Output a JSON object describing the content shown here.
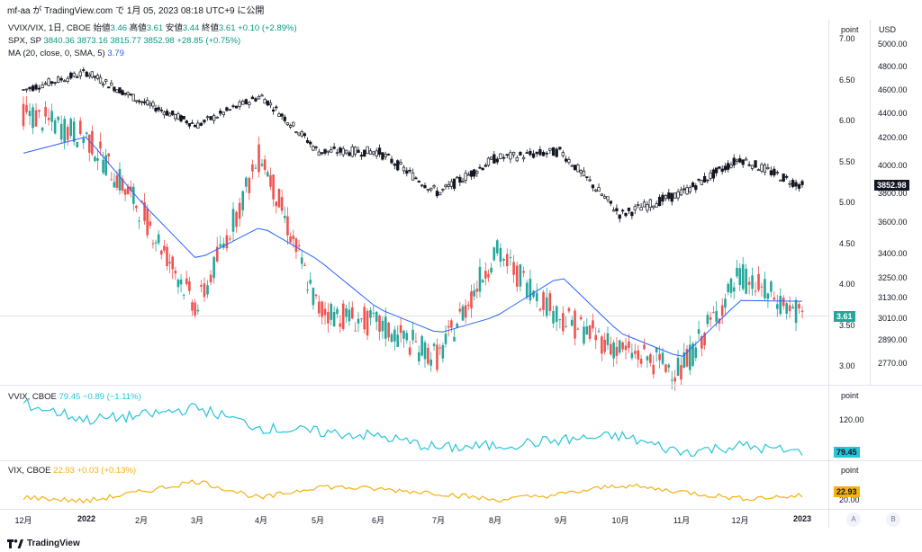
{
  "header": "mf-aa が TradingView.com で 1月 05, 2023 08:18 UTC+9 に公開",
  "legend": {
    "main_name": "VVIX/VIX, 1日, CBOE",
    "main_o_label": "始値",
    "main_o": "3.46",
    "main_h_label": "高値",
    "main_h": "3.61",
    "main_l_label": "安値",
    "main_l": "3.44",
    "main_c_label": "終値",
    "main_c": "3.61",
    "main_change": "+0.10 (+2.89%)",
    "spx_name": "SPX, SP",
    "spx_values": "3840.36  3873.16  3815.77  3852.98  +28.85 (+0.75%)",
    "ma_name": "MA (20, close, 0, SMA, 5)",
    "ma_value": "3.79",
    "vvix_name": "VVIX, CBOE",
    "vvix_values": "79.45  −0.89 (−1.11%)",
    "vix_name": "VIX, CBOE",
    "vix_values": "22.93  +0.03 (+0.13%)"
  },
  "axes": {
    "point_label": "point",
    "usd_label": "USD",
    "left_ticks": [
      "7.00",
      "6.50",
      "6.00",
      "5.50",
      "5.00",
      "4.50",
      "4.00",
      "3.50",
      "3.00"
    ],
    "right_ticks": [
      "5000.00",
      "4800.00",
      "4600.00",
      "4400.00",
      "4200.00",
      "4000.00",
      "3800.00",
      "3600.00",
      "3400.00",
      "3250.00",
      "3130.00",
      "3010.00",
      "2890.00",
      "2770.00"
    ],
    "spx_badge": "3852.98",
    "ratio_badge": "3.61",
    "vvix_tick": "120.00",
    "vvix_badge": "79.45",
    "vix_tick": "20.00",
    "vix_badge": "22.93",
    "x_labels": [
      "12月",
      "2022",
      "2月",
      "3月",
      "4月",
      "5月",
      "6月",
      "7月",
      "8月",
      "9月",
      "10月",
      "11月",
      "12月",
      "2023"
    ]
  },
  "colors": {
    "up": "#26a69a",
    "down": "#ef5350",
    "spx": "#131722",
    "ma": "#2962ff",
    "vvix": "#26c6da",
    "vix": "#f6b012"
  },
  "footer": {
    "brand": "TradingView",
    "btn_a": "A",
    "btn_b": "B"
  },
  "chart_data": {
    "type": "line",
    "x": [
      "12月",
      "2022",
      "2月",
      "3月",
      "4月",
      "5月",
      "6月",
      "7月",
      "8月",
      "9月",
      "10月",
      "11月",
      "12月",
      "2023"
    ],
    "series": [
      {
        "name": "VVIX/VIX",
        "values": [
          6.1,
          5.8,
          4.9,
          3.7,
          5.6,
          3.7,
          3.5,
          3.1,
          4.4,
          3.6,
          3.2,
          2.95,
          4.1,
          3.61
        ]
      },
      {
        "name": "SPX",
        "values": [
          4600,
          4750,
          4500,
          4300,
          4550,
          4100,
          4100,
          3800,
          4050,
          4100,
          3650,
          3800,
          4050,
          3852.98
        ]
      },
      {
        "name": "MA",
        "values": [
          5.6,
          5.8,
          5.0,
          4.3,
          4.7,
          4.3,
          3.7,
          3.4,
          3.6,
          4.1,
          3.4,
          3.1,
          3.8,
          3.79
        ]
      },
      {
        "name": "VVIX",
        "values": [
          140,
          120,
          125,
          135,
          110,
          105,
          100,
          85,
          88,
          95,
          100,
          80,
          88,
          79.45
        ]
      },
      {
        "name": "VIX",
        "values": [
          22,
          19,
          26,
          34,
          21,
          30,
          28,
          25,
          20,
          24,
          31,
          26,
          21,
          22.93
        ]
      }
    ],
    "ylim": [
      3.0,
      7.0
    ],
    "spx_ylim": [
      2770,
      5000
    ]
  }
}
